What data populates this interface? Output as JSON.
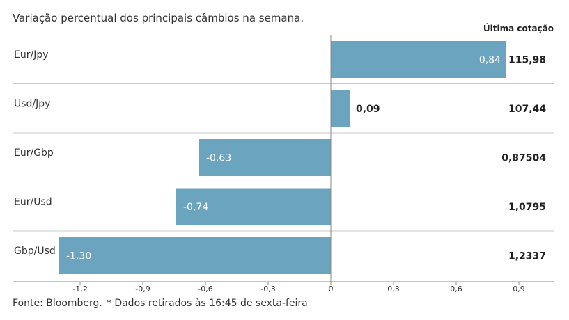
{
  "subtitle": "Variação percentual dos principais câmbios na semana.",
  "right_header": "Última cotação",
  "source": "Fonte: Bloomberg.",
  "note": "* Dados retirados às 16:45 de sexta-feira",
  "colors": {
    "bar": "#6ba4be",
    "separator": "#c8c8c8",
    "axis": "#888888"
  },
  "chart_data": {
    "type": "bar",
    "orientation": "horizontal",
    "title": "Variação percentual dos principais câmbios na semana.",
    "categories": [
      "Eur/Jpy",
      "Usd/Jpy",
      "Eur/Gbp",
      "Eur/Usd",
      "Gbp/Usd"
    ],
    "values": [
      0.84,
      0.09,
      -0.63,
      -0.74,
      -1.3
    ],
    "value_labels": [
      "0,84",
      "0,09",
      "-0,63",
      "-0,74",
      "-1,30"
    ],
    "last_quote_header": "Última cotação",
    "last_quotes": [
      "115,98",
      "107,44",
      "0,87504",
      "1,0795",
      "1,2337"
    ],
    "xlim": [
      -1.35,
      1.0
    ],
    "x_ticks": [
      -1.2,
      -0.9,
      -0.6,
      -0.3,
      0,
      0.3,
      0.6,
      0.9
    ],
    "x_tick_labels": [
      "-1,2",
      "-0,9",
      "-0,6",
      "-0,3",
      "0",
      "0,3",
      "0,6",
      "0,9"
    ],
    "xlabel": "",
    "ylabel": "",
    "grid": false
  }
}
